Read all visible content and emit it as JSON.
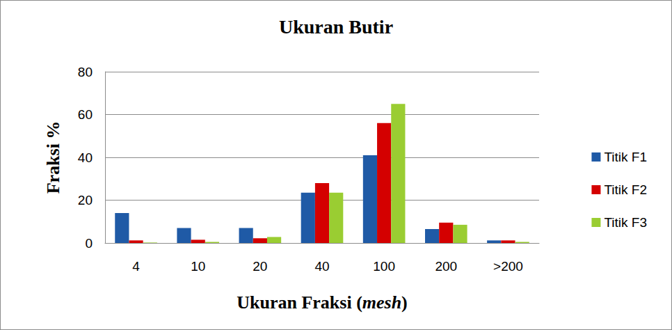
{
  "chart_data": {
    "type": "bar",
    "title": "Ukuran Butir",
    "x_label": "Ukuran Fraksi (mesh)",
    "y_label": "Fraksi %",
    "categories": [
      "4",
      "10",
      "20",
      "40",
      "100",
      "200",
      ">200"
    ],
    "series": [
      {
        "name": "Titik F1",
        "color": "#1f5aa6",
        "values": [
          14,
          7,
          7,
          23.5,
          41,
          6.5,
          1.2
        ]
      },
      {
        "name": "Titik F2",
        "color": "#d40000",
        "values": [
          1.2,
          1.5,
          2.2,
          28,
          56,
          9.5,
          1.2
        ]
      },
      {
        "name": "Titik F3",
        "color": "#9acd32",
        "values": [
          0.2,
          0.5,
          2.8,
          23.5,
          65,
          8.5,
          0.5
        ]
      }
    ],
    "ylim": [
      0,
      80
    ],
    "yticks": [
      0,
      20,
      40,
      60,
      80
    ],
    "grid": true,
    "legend": "right"
  }
}
